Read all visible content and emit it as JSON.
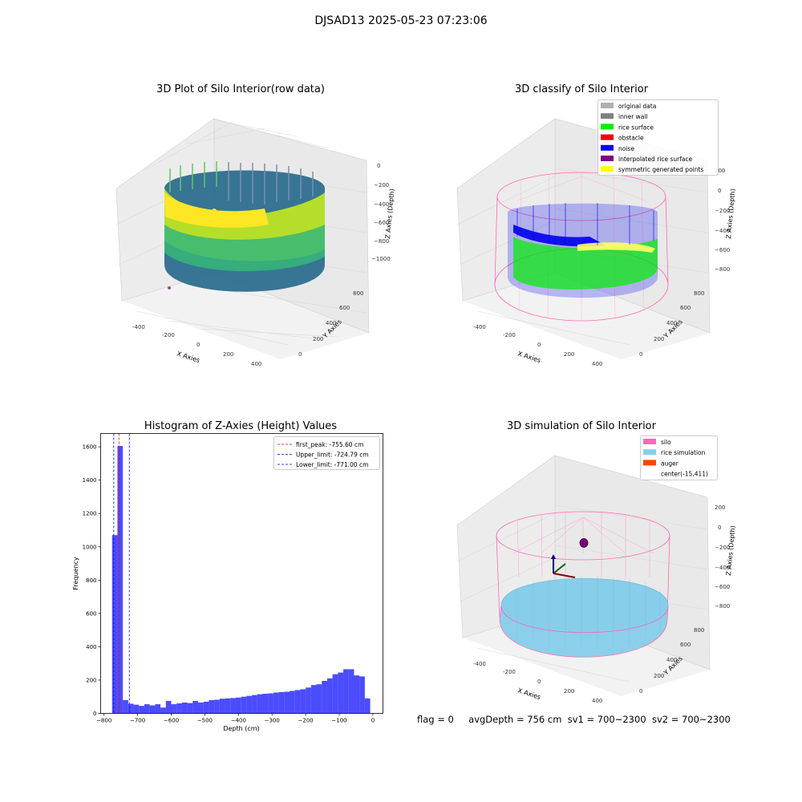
{
  "suptitle": "DJSAD13 2025-05-23 07:23:06",
  "panels": {
    "raw": {
      "title": "3D Plot of Silo Interior(row data)",
      "xlabel": "X Axies",
      "ylabel": "Y Axies",
      "zlabel": "Z Axies (Depth)",
      "xticks": [
        "-400",
        "-200",
        "0",
        "200",
        "400"
      ],
      "yticks": [
        "0",
        "200",
        "400",
        "600",
        "800"
      ],
      "zticks": [
        "0",
        "−200",
        "−400",
        "−600",
        "−800",
        "−1000"
      ]
    },
    "classify": {
      "title": "3D classify of Silo Interior",
      "xlabel": "X Axies",
      "ylabel": "Y Axies",
      "zlabel": "Z Axies (Depth)",
      "xticks": [
        "-400",
        "-200",
        "0",
        "200",
        "400"
      ],
      "yticks": [
        "0",
        "200",
        "400",
        "600",
        "800"
      ],
      "zticks": [
        "200",
        "0",
        "−200",
        "−400",
        "−600",
        "−800"
      ],
      "legend": [
        {
          "label": "original data",
          "color": "#b0b0b0"
        },
        {
          "label": "inner wall",
          "color": "#808080"
        },
        {
          "label": "rice surface",
          "color": "#00ee00"
        },
        {
          "label": "obstacle",
          "color": "#ee0000"
        },
        {
          "label": "noise",
          "color": "#0000ee"
        },
        {
          "label": "interpolated rice surface",
          "color": "#800080"
        },
        {
          "label": "symmetric generated points",
          "color": "#ffff00"
        }
      ]
    },
    "simulation": {
      "title": "3D simulation of Silo Interior",
      "xlabel": "X Axies",
      "ylabel": "Y Axies",
      "zlabel": "Z Axies (Depth)",
      "xticks": [
        "-400",
        "-200",
        "0",
        "200",
        "400"
      ],
      "yticks": [
        "0",
        "200",
        "400",
        "600",
        "800"
      ],
      "zticks": [
        "200",
        "0",
        "−200",
        "−400",
        "−600",
        "−800"
      ],
      "legend": [
        {
          "label": "silo",
          "color": "#ff69b4"
        },
        {
          "label": "rice simulation",
          "color": "#87ceeb"
        },
        {
          "label": "auger",
          "color": "#ff4500"
        },
        {
          "label": "center(-15,411)",
          "color": ""
        }
      ]
    }
  },
  "chart_data": {
    "type": "bar",
    "title": "Histogram of Z-Axies (Height) Values",
    "xlabel": "Depth (cm)",
    "ylabel": "Frequency",
    "xlim": [
      -810,
      30
    ],
    "ylim": [
      0,
      1680
    ],
    "xticks": [
      -800,
      -700,
      -600,
      -500,
      -400,
      -300,
      -200,
      -100,
      0
    ],
    "yticks": [
      0,
      200,
      400,
      600,
      800,
      1000,
      1200,
      1400,
      1600
    ],
    "bar_color": "#0000ff",
    "bin_width": 16,
    "bin_starts": [
      -776,
      -760,
      -744,
      -728,
      -712,
      -696,
      -680,
      -664,
      -648,
      -632,
      -616,
      -600,
      -584,
      -568,
      -552,
      -536,
      -520,
      -504,
      -488,
      -472,
      -456,
      -440,
      -424,
      -408,
      -392,
      -376,
      -360,
      -344,
      -328,
      -312,
      -296,
      -280,
      -264,
      -248,
      -232,
      -216,
      -200,
      -184,
      -168,
      -152,
      -136,
      -120,
      -104,
      -88,
      -72,
      -56,
      -40,
      -24
    ],
    "values": [
      1070,
      1605,
      80,
      58,
      52,
      45,
      55,
      48,
      55,
      35,
      75,
      55,
      60,
      65,
      62,
      75,
      65,
      70,
      80,
      82,
      88,
      90,
      92,
      95,
      100,
      105,
      110,
      115,
      118,
      120,
      125,
      128,
      130,
      135,
      140,
      145,
      155,
      170,
      175,
      195,
      210,
      235,
      245,
      265,
      265,
      228,
      222,
      90
    ],
    "vlines": [
      {
        "label": "first_peak: -755.60 cm",
        "x": -755.6,
        "color": "#ff0000"
      },
      {
        "label": "Upper_limit: -724.79 cm",
        "x": -724.79,
        "color": "#0000ff"
      },
      {
        "label": "Lower_limit: -771.00 cm",
        "x": -771.0,
        "color": "#0000ff"
      }
    ],
    "legend_position": "upper right"
  },
  "footer": {
    "flag": "flag = 0",
    "avg": "avgDepth = 756 cm",
    "sv1": "sv1 = 700~2300",
    "sv2": "sv2 = 700~2300"
  }
}
